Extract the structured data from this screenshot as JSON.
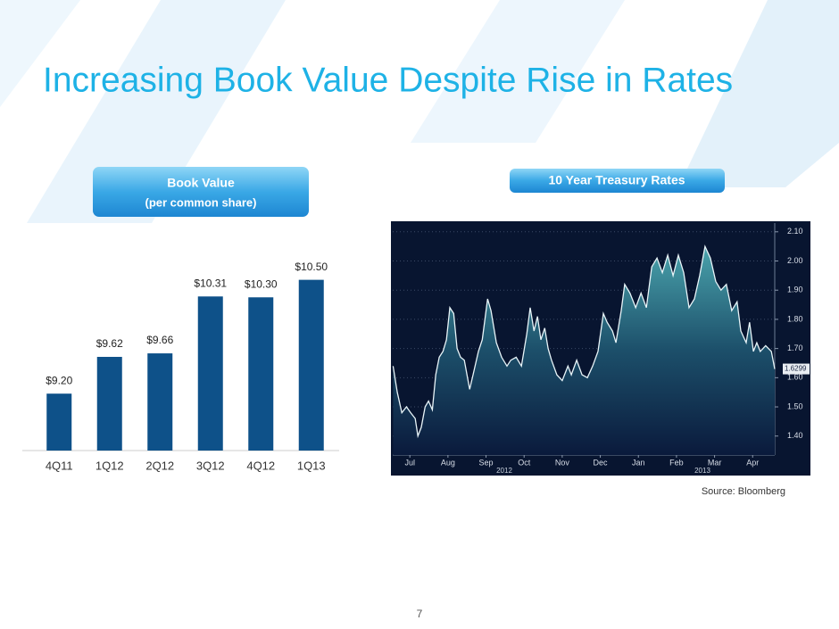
{
  "title": "Increasing Book Value Despite Rise in Rates",
  "source": "Source: Bloomberg",
  "page_number": "7",
  "chart_data": [
    {
      "type": "bar",
      "title": "Book Value",
      "subtitle": "(per common share)",
      "categories": [
        "4Q11",
        "1Q12",
        "2Q12",
        "3Q12",
        "4Q12",
        "1Q13"
      ],
      "values": [
        9.2,
        9.62,
        9.66,
        10.31,
        10.3,
        10.5
      ],
      "value_labels": [
        "$9.20",
        "$9.62",
        "$9.66",
        "$10.31",
        "$10.30",
        "$10.50"
      ],
      "color": "#0e5189",
      "ylim": [
        8.55,
        10.7
      ]
    },
    {
      "type": "line",
      "title": "10 Year Treasury Rates",
      "x": [
        -0.44,
        -0.33,
        -0.21,
        -0.09,
        0.02,
        0.14,
        0.21,
        0.3,
        0.4,
        0.49,
        0.59,
        0.68,
        0.77,
        0.87,
        0.96,
        1.05,
        1.15,
        1.24,
        1.33,
        1.43,
        1.57,
        1.66,
        1.8,
        1.9,
        2.04,
        2.13,
        2.27,
        2.41,
        2.55,
        2.65,
        2.79,
        2.93,
        3.07,
        3.16,
        3.26,
        3.35,
        3.44,
        3.54,
        3.63,
        3.72,
        3.86,
        4.0,
        4.15,
        4.24,
        4.38,
        4.52,
        4.66,
        4.8,
        4.94,
        5.08,
        5.18,
        5.32,
        5.41,
        5.55,
        5.64,
        5.78,
        5.93,
        6.07,
        6.21,
        6.35,
        6.49,
        6.63,
        6.77,
        6.91,
        7.05,
        7.19,
        7.33,
        7.47,
        7.61,
        7.75,
        7.89,
        8.03,
        8.17,
        8.31,
        8.45,
        8.59,
        8.69,
        8.83,
        8.92,
        9.02,
        9.11,
        9.2,
        9.34,
        9.49,
        9.58
      ],
      "series": [
        {
          "color": "#e8f4f8",
          "values": [
            1.64,
            1.55,
            1.48,
            1.5,
            1.48,
            1.46,
            1.4,
            1.43,
            1.5,
            1.52,
            1.49,
            1.61,
            1.67,
            1.69,
            1.73,
            1.84,
            1.82,
            1.7,
            1.67,
            1.66,
            1.56,
            1.61,
            1.69,
            1.73,
            1.87,
            1.83,
            1.72,
            1.67,
            1.64,
            1.66,
            1.67,
            1.64,
            1.75,
            1.84,
            1.76,
            1.81,
            1.73,
            1.77,
            1.7,
            1.66,
            1.61,
            1.59,
            1.64,
            1.61,
            1.66,
            1.61,
            1.6,
            1.64,
            1.69,
            1.82,
            1.79,
            1.76,
            1.72,
            1.83,
            1.92,
            1.89,
            1.84,
            1.89,
            1.84,
            1.98,
            2.01,
            1.96,
            2.02,
            1.95,
            2.02,
            1.96,
            1.84,
            1.87,
            1.95,
            2.05,
            2.01,
            1.93,
            1.9,
            1.92,
            1.83,
            1.86,
            1.76,
            1.72,
            1.79,
            1.69,
            1.72,
            1.69,
            1.71,
            1.69,
            1.6299
          ]
        }
      ],
      "xlim": [
        -0.45,
        9.58
      ],
      "xticks": [
        {
          "value": 0,
          "label": "Jul"
        },
        {
          "value": 1,
          "label": "Aug"
        },
        {
          "value": 2,
          "label": "Sep"
        },
        {
          "value": 3,
          "label": "Oct"
        },
        {
          "value": 4,
          "label": "Nov"
        },
        {
          "value": 5,
          "label": "Dec"
        },
        {
          "value": 6,
          "label": "Jan"
        },
        {
          "value": 7,
          "label": "Feb"
        },
        {
          "value": 8,
          "label": "Mar"
        },
        {
          "value": 9,
          "label": "Apr"
        }
      ],
      "year_labels": [
        "2012",
        "2013"
      ],
      "ylim": [
        1.335,
        2.13
      ],
      "yticks": [
        {
          "value": 1.4,
          "label": "1.40"
        },
        {
          "value": 1.5,
          "label": "1.50"
        },
        {
          "value": 1.6,
          "label": "1.60"
        },
        {
          "value": 1.7,
          "label": "1.70"
        },
        {
          "value": 1.8,
          "label": "1.80"
        },
        {
          "value": 1.9,
          "label": "1.90"
        },
        {
          "value": 2.0,
          "label": "2.00"
        },
        {
          "value": 2.1,
          "label": "2.10"
        }
      ],
      "grid": true
    }
  ]
}
